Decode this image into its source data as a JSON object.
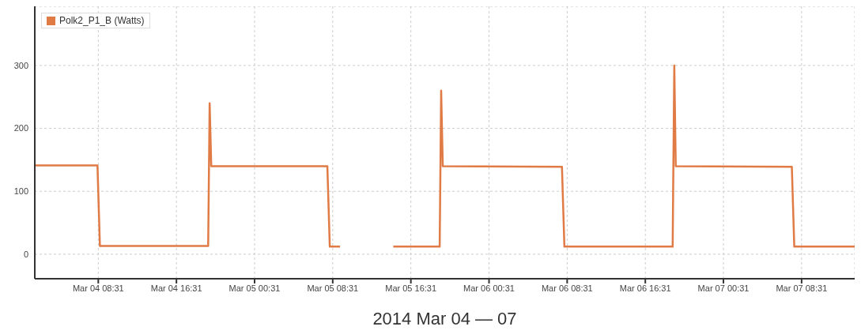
{
  "chart_data": {
    "type": "line",
    "xlabel": "2014 Mar 04 — 07",
    "x": [
      "2014-03-04T02:01",
      "2014-03-04T08:26",
      "2014-03-04T08:41",
      "2014-03-04T19:46",
      "2014-03-04T19:55",
      "2014-03-04T20:05",
      "2014-03-05T07:58",
      "2014-03-05T08:13",
      "2014-03-05T09:16",
      "2014-03-05T09:25",
      "2014-03-05T12:00",
      "2014-03-05T14:34",
      "2014-03-05T14:43",
      "2014-03-05T19:28",
      "2014-03-05T19:37",
      "2014-03-05T19:47",
      "2014-03-06T07:59",
      "2014-03-06T08:14",
      "2014-03-06T19:19",
      "2014-03-06T19:29",
      "2014-03-06T19:38",
      "2014-03-07T07:31",
      "2014-03-07T07:46",
      "2014-03-07T13:57"
    ],
    "series": [
      {
        "name": "Polk2_P1_B (Watts)",
        "color": "#e07b45",
        "values": [
          141,
          141,
          13,
          13,
          240,
          140,
          140,
          12,
          12,
          null,
          null,
          null,
          12,
          12,
          260,
          140,
          139,
          12,
          12,
          300,
          140,
          139,
          12,
          12
        ]
      }
    ],
    "xlim": [
      "2014-03-04T02:01",
      "2014-03-07T13:57"
    ],
    "xticks": [
      {
        "value": "2014-03-04T08:31",
        "label": "Mar 04 08:31"
      },
      {
        "value": "2014-03-04T16:31",
        "label": "Mar 04 16:31"
      },
      {
        "value": "2014-03-05T00:31",
        "label": "Mar 05 00:31"
      },
      {
        "value": "2014-03-05T08:31",
        "label": "Mar 05 08:31"
      },
      {
        "value": "2014-03-05T16:31",
        "label": "Mar 05 16:31"
      },
      {
        "value": "2014-03-06T00:31",
        "label": "Mar 06 00:31"
      },
      {
        "value": "2014-03-06T08:31",
        "label": "Mar 06 08:31"
      },
      {
        "value": "2014-03-06T16:31",
        "label": "Mar 06 16:31"
      },
      {
        "value": "2014-03-07T00:31",
        "label": "Mar 07 00:31"
      },
      {
        "value": "2014-03-07T08:31",
        "label": "Mar 07 08:31"
      }
    ],
    "ylim": [
      -39,
      394
    ],
    "yticks": [
      0,
      100,
      200,
      300
    ],
    "grid": true,
    "legend": "top left",
    "marker": "none",
    "line_style": "solid"
  }
}
